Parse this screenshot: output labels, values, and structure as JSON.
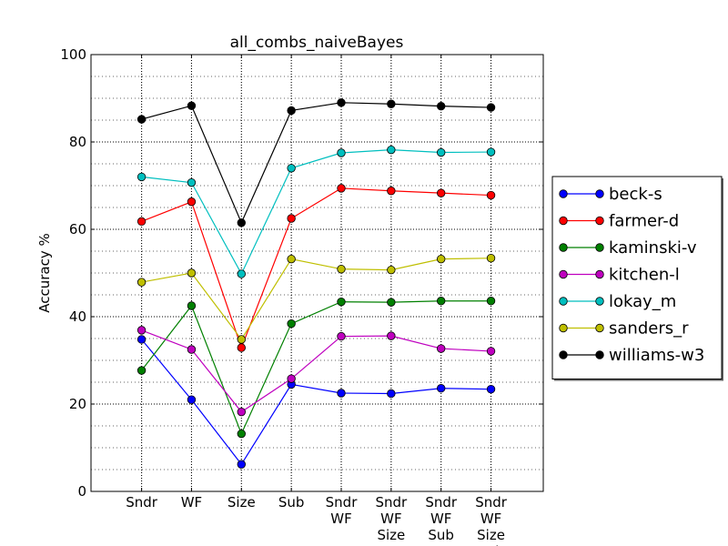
{
  "chart_data": {
    "type": "line",
    "title": "all_combs_naiveBayes",
    "xlabel": "",
    "ylabel": "Accuracy %",
    "ylim": [
      0,
      100
    ],
    "yticks": [
      0,
      20,
      40,
      60,
      80,
      100
    ],
    "grid": true,
    "legend_position": "right",
    "categories": [
      [
        "Sndr"
      ],
      [
        "WF"
      ],
      [
        "Size"
      ],
      [
        "Sub"
      ],
      [
        "Sndr",
        "WF"
      ],
      [
        "Sndr",
        "WF",
        "Size"
      ],
      [
        "Sndr",
        "WF",
        "Sub"
      ],
      [
        "Sndr",
        "WF",
        "Size",
        "Sub"
      ]
    ],
    "series": [
      {
        "name": "beck-s",
        "color": "#0000ff",
        "values": [
          34.8,
          21.0,
          6.2,
          24.5,
          22.5,
          22.4,
          23.6,
          23.4
        ]
      },
      {
        "name": "farmer-d",
        "color": "#ff0000",
        "values": [
          61.8,
          66.3,
          32.9,
          62.5,
          69.4,
          68.8,
          68.3,
          67.8
        ]
      },
      {
        "name": "kaminski-v",
        "color": "#008000",
        "values": [
          27.7,
          42.5,
          13.2,
          38.4,
          43.4,
          43.3,
          43.6,
          43.6
        ]
      },
      {
        "name": "kitchen-l",
        "color": "#bf00bf",
        "values": [
          36.9,
          32.5,
          18.2,
          25.8,
          35.5,
          35.6,
          32.7,
          32.1
        ]
      },
      {
        "name": "lokay_m",
        "color": "#00bfbf",
        "values": [
          72.0,
          70.7,
          49.8,
          74.0,
          77.5,
          78.2,
          77.6,
          77.7
        ]
      },
      {
        "name": "sanders_r",
        "color": "#bfbf00",
        "values": [
          47.9,
          50.0,
          34.8,
          53.2,
          50.9,
          50.7,
          53.2,
          53.4
        ]
      },
      {
        "name": "williams-w3",
        "color": "#000000",
        "values": [
          85.2,
          88.3,
          61.5,
          87.2,
          89.0,
          88.7,
          88.2,
          87.9
        ]
      }
    ]
  }
}
